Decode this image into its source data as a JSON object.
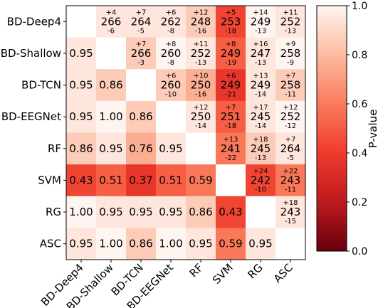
{
  "chart_data": {
    "type": "heatmap",
    "labels": [
      "BD-Deep4",
      "BD-Shallow",
      "BD-TCN",
      "BD-EEGNet",
      "RF",
      "SVM",
      "RG",
      "ASC"
    ],
    "lower_pvalues": [
      [
        null,
        null,
        null,
        null,
        null,
        null,
        null,
        null
      ],
      [
        0.95,
        null,
        null,
        null,
        null,
        null,
        null,
        null
      ],
      [
        0.95,
        0.86,
        null,
        null,
        null,
        null,
        null,
        null
      ],
      [
        0.95,
        1.0,
        0.86,
        null,
        null,
        null,
        null,
        null
      ],
      [
        0.86,
        0.95,
        0.76,
        0.95,
        null,
        null,
        null,
        null
      ],
      [
        0.43,
        0.51,
        0.37,
        0.51,
        0.59,
        null,
        null,
        null
      ],
      [
        1.0,
        0.95,
        0.95,
        0.95,
        0.86,
        0.43,
        null,
        null
      ],
      [
        0.95,
        1.0,
        0.86,
        1.0,
        0.95,
        0.59,
        0.95,
        null
      ]
    ],
    "upper_cells": [
      {
        "row": 0,
        "col": 1,
        "top": "+4",
        "mid": "266",
        "bot": "-6",
        "p": 0.95
      },
      {
        "row": 0,
        "col": 2,
        "top": "+7",
        "mid": "264",
        "bot": "-5",
        "p": 0.95
      },
      {
        "row": 0,
        "col": 3,
        "top": "+6",
        "mid": "262",
        "bot": "-8",
        "p": 0.95
      },
      {
        "row": 0,
        "col": 4,
        "top": "+12",
        "mid": "248",
        "bot": "-16",
        "p": 0.86
      },
      {
        "row": 0,
        "col": 5,
        "top": "+5",
        "mid": "253",
        "bot": "-18",
        "p": 0.43
      },
      {
        "row": 0,
        "col": 6,
        "top": "+14",
        "mid": "249",
        "bot": "-13",
        "p": 1.0
      },
      {
        "row": 0,
        "col": 7,
        "top": "+11",
        "mid": "252",
        "bot": "-13",
        "p": 0.95
      },
      {
        "row": 1,
        "col": 2,
        "top": "+7",
        "mid": "266",
        "bot": "-3",
        "p": 0.86
      },
      {
        "row": 1,
        "col": 3,
        "top": "+8",
        "mid": "260",
        "bot": "-8",
        "p": 1.0
      },
      {
        "row": 1,
        "col": 4,
        "top": "+11",
        "mid": "252",
        "bot": "-13",
        "p": 0.95
      },
      {
        "row": 1,
        "col": 5,
        "top": "+8",
        "mid": "249",
        "bot": "-19",
        "p": 0.51
      },
      {
        "row": 1,
        "col": 6,
        "top": "+16",
        "mid": "247",
        "bot": "-13",
        "p": 0.95
      },
      {
        "row": 1,
        "col": 7,
        "top": "+9",
        "mid": "258",
        "bot": "-9",
        "p": 1.0
      },
      {
        "row": 2,
        "col": 3,
        "top": "+6",
        "mid": "260",
        "bot": "-10",
        "p": 0.86
      },
      {
        "row": 2,
        "col": 4,
        "top": "+10",
        "mid": "250",
        "bot": "-16",
        "p": 0.76
      },
      {
        "row": 2,
        "col": 5,
        "top": "+6",
        "mid": "249",
        "bot": "-21",
        "p": 0.37
      },
      {
        "row": 2,
        "col": 6,
        "top": "+13",
        "mid": "249",
        "bot": "-14",
        "p": 0.95
      },
      {
        "row": 2,
        "col": 7,
        "top": "+7",
        "mid": "258",
        "bot": "-11",
        "p": 0.86
      },
      {
        "row": 3,
        "col": 4,
        "top": "+12",
        "mid": "250",
        "bot": "-14",
        "p": 0.95
      },
      {
        "row": 3,
        "col": 5,
        "top": "+7",
        "mid": "251",
        "bot": "-18",
        "p": 0.51
      },
      {
        "row": 3,
        "col": 6,
        "top": "+17",
        "mid": "245",
        "bot": "-14",
        "p": 0.95
      },
      {
        "row": 3,
        "col": 7,
        "top": "+12",
        "mid": "252",
        "bot": "-12",
        "p": 1.0
      },
      {
        "row": 4,
        "col": 5,
        "top": "+13",
        "mid": "241",
        "bot": "-22",
        "p": 0.59
      },
      {
        "row": 4,
        "col": 6,
        "top": "+18",
        "mid": "245",
        "bot": "-13",
        "p": 0.86
      },
      {
        "row": 4,
        "col": 7,
        "top": "+7",
        "mid": "264",
        "bot": "-5",
        "p": 0.95
      },
      {
        "row": 5,
        "col": 6,
        "top": "+24",
        "mid": "242",
        "bot": "-10",
        "p": 0.43
      },
      {
        "row": 5,
        "col": 7,
        "top": "+22",
        "mid": "243",
        "bot": "-11",
        "p": 0.59
      },
      {
        "row": 6,
        "col": 7,
        "top": "+18",
        "mid": "243",
        "bot": "-15",
        "p": 0.95
      }
    ],
    "colorbar": {
      "label": "P-value",
      "range": [
        0.0,
        1.0
      ],
      "ticks": [
        "0.0",
        "0.2",
        "0.4",
        "0.6",
        "0.8",
        "1.0"
      ],
      "colormap": "Reds_r"
    },
    "grid": false
  }
}
